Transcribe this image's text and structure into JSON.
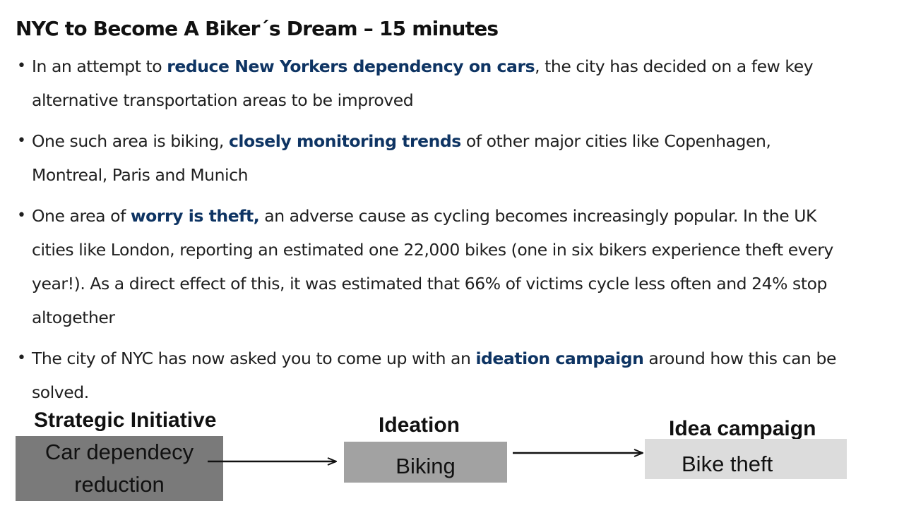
{
  "title": "NYC to Become A Biker´s Dream – 15 minutes",
  "bullet_glyph": "•",
  "bullets": [
    {
      "pre": "In an attempt to ",
      "bold": "reduce New Yorkers dependency on cars",
      "post": ", the city has decided on a few key  alternative transportation areas to be improved"
    },
    {
      "pre": "One such area is biking, ",
      "bold": "closely monitoring trends",
      "post": " of other major cities like Copenhagen, Montreal,  Paris and Munich"
    },
    {
      "pre": "One area of ",
      "bold": "worry is theft,",
      "post": " an adverse cause as cycling becomes increasingly popular. In the UK  cities like London, reporting an estimated one 22,000 bikes (one in six bikers experience theft every  year!). As a direct effect of this, it was estimated that 66% of victims cycle less often and 24% stop  altogether"
    },
    {
      "pre": "The city of NYC has now asked you to come up with an ",
      "bold": "ideation campaign",
      "post": " around how this can be  solved."
    }
  ],
  "diagram": {
    "strategic_label": "Strategic Initiative",
    "strategic_box_line1": "Car dependecy",
    "strategic_box_line2": "reduction",
    "ideation_label": "Ideation",
    "ideation_box": "Biking",
    "campaign_label": "Idea campaign",
    "campaign_box": "Bike theft"
  },
  "colors": {
    "highlight": "#0e3463",
    "box_dark": "#7a7a7a",
    "box_mid": "#a2a2a2",
    "box_light": "#dcdcdc"
  }
}
